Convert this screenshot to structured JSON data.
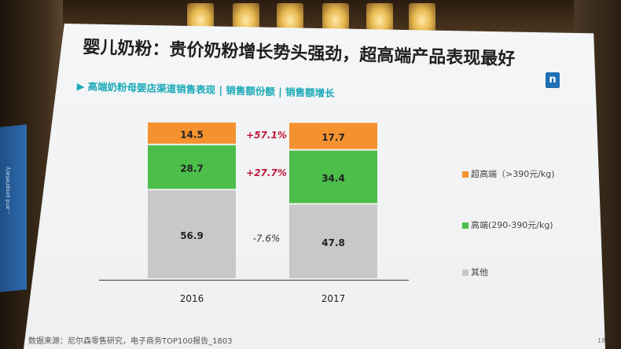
{
  "slide": {
    "title": "婴儿奶粉：贵价奶粉增长势头强劲，超高端产品表现最好",
    "subtitle": "▶ 高端奶粉母婴店渠道销售表现 | 销售额份额 | 销售额增长",
    "logo": "n",
    "footnote": "数据来源：尼尔森零售研究，电子商务TOP100报告_1803",
    "page_number": "18",
    "edge_text": "...and proprietary"
  },
  "chart_data": {
    "type": "bar",
    "stacked": true,
    "categories": [
      "2016",
      "2017"
    ],
    "series": [
      {
        "name": "其他",
        "values": [
          56.9,
          47.8
        ],
        "color": "#c8c8c8"
      },
      {
        "name": "高端(290-390元/kg)",
        "values": [
          28.7,
          34.4
        ],
        "color": "#4cbf4a"
      },
      {
        "name": "超高端（>390元/kg)",
        "values": [
          14.5,
          17.7
        ],
        "color": "#f5922f"
      }
    ],
    "value_labels": [
      [
        "56.9",
        "47.8"
      ],
      [
        "28.7",
        "34.4"
      ],
      [
        "14.5",
        "17.7"
      ]
    ],
    "growth_labels": [
      {
        "series": "超高端（>390元/kg)",
        "text": "+57.1%",
        "color": "#c0183a"
      },
      {
        "series": "高端(290-390元/kg)",
        "text": "+27.7%",
        "color": "#c0183a"
      },
      {
        "series": "其他",
        "text": "-7.6%",
        "color": "#333333"
      }
    ],
    "legend_order": [
      "超高端（>390元/kg)",
      "高端(290-390元/kg)",
      "其他"
    ],
    "legend_position": "right",
    "ylim": [
      0,
      100
    ],
    "grid": false,
    "title": "",
    "xlabel": "",
    "ylabel": ""
  }
}
